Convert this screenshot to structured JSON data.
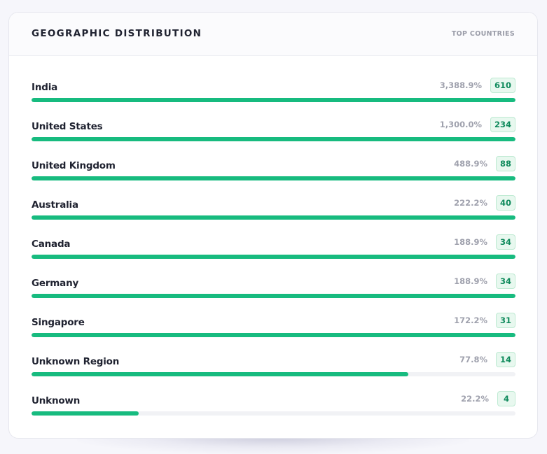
{
  "card": {
    "title": "GEOGRAPHIC DISTRIBUTION",
    "subtitle": "TOP COUNTRIES"
  },
  "colors": {
    "bar_fill": "#17bb7f",
    "bar_track": "#f1f2f5",
    "badge_text": "#0f8a5c",
    "badge_bg": "#e8f8ef"
  },
  "countries": [
    {
      "name": "India",
      "percent": "3,388.9%",
      "count": "610",
      "fill": 1.0
    },
    {
      "name": "United States",
      "percent": "1,300.0%",
      "count": "234",
      "fill": 1.0
    },
    {
      "name": "United Kingdom",
      "percent": "488.9%",
      "count": "88",
      "fill": 1.0
    },
    {
      "name": "Australia",
      "percent": "222.2%",
      "count": "40",
      "fill": 1.0
    },
    {
      "name": "Canada",
      "percent": "188.9%",
      "count": "34",
      "fill": 1.0
    },
    {
      "name": "Germany",
      "percent": "188.9%",
      "count": "34",
      "fill": 1.0
    },
    {
      "name": "Singapore",
      "percent": "172.2%",
      "count": "31",
      "fill": 1.0
    },
    {
      "name": "Unknown Region",
      "percent": "77.8%",
      "count": "14",
      "fill": 0.778
    },
    {
      "name": "Unknown",
      "percent": "22.2%",
      "count": "4",
      "fill": 0.222
    }
  ]
}
